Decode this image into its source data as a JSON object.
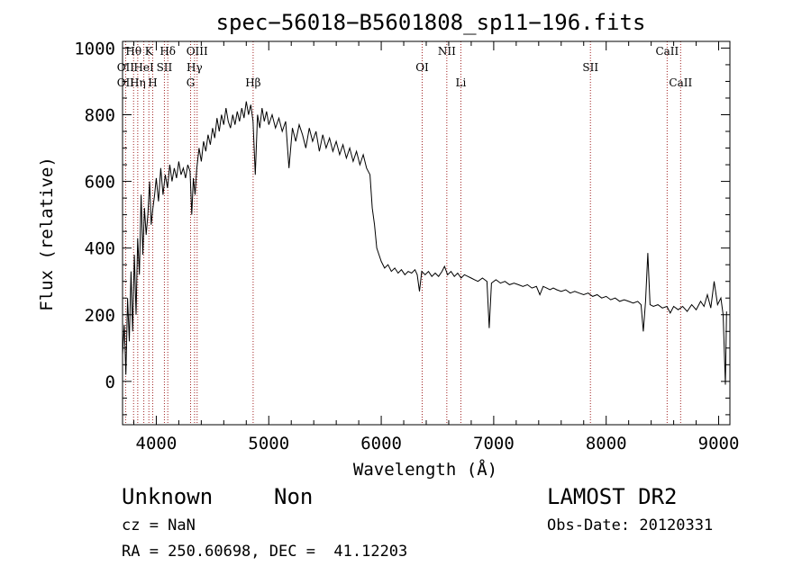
{
  "chart_data": {
    "type": "line",
    "title": "spec−56018−B5601808_sp11−196.fits",
    "xlabel": "Wavelength (Å)",
    "ylabel": "Flux (relative)",
    "xlim": [
      3700,
      9100
    ],
    "ylim": [
      -130,
      1020
    ],
    "xticks": [
      4000,
      5000,
      6000,
      7000,
      8000,
      9000
    ],
    "yticks": [
      0,
      200,
      400,
      600,
      800,
      1000
    ],
    "grid": false,
    "series": [
      {
        "points": [
          [
            3700,
            80
          ],
          [
            3715,
            170
          ],
          [
            3730,
            20
          ],
          [
            3745,
            250
          ],
          [
            3760,
            120
          ],
          [
            3775,
            330
          ],
          [
            3790,
            150
          ],
          [
            3805,
            380
          ],
          [
            3820,
            200
          ],
          [
            3835,
            430
          ],
          [
            3850,
            320
          ],
          [
            3865,
            560
          ],
          [
            3880,
            380
          ],
          [
            3895,
            520
          ],
          [
            3910,
            440
          ],
          [
            3925,
            500
          ],
          [
            3940,
            600
          ],
          [
            3955,
            470
          ],
          [
            3970,
            520
          ],
          [
            3985,
            560
          ],
          [
            4000,
            610
          ],
          [
            4020,
            540
          ],
          [
            4040,
            640
          ],
          [
            4060,
            560
          ],
          [
            4080,
            620
          ],
          [
            4100,
            580
          ],
          [
            4120,
            650
          ],
          [
            4140,
            600
          ],
          [
            4160,
            640
          ],
          [
            4180,
            610
          ],
          [
            4200,
            660
          ],
          [
            4220,
            620
          ],
          [
            4240,
            640
          ],
          [
            4260,
            610
          ],
          [
            4280,
            650
          ],
          [
            4300,
            630
          ],
          [
            4315,
            500
          ],
          [
            4330,
            610
          ],
          [
            4345,
            560
          ],
          [
            4360,
            640
          ],
          [
            4380,
            700
          ],
          [
            4400,
            660
          ],
          [
            4420,
            720
          ],
          [
            4440,
            690
          ],
          [
            4460,
            740
          ],
          [
            4480,
            710
          ],
          [
            4500,
            760
          ],
          [
            4520,
            730
          ],
          [
            4540,
            790
          ],
          [
            4560,
            750
          ],
          [
            4580,
            800
          ],
          [
            4600,
            770
          ],
          [
            4620,
            820
          ],
          [
            4640,
            780
          ],
          [
            4660,
            760
          ],
          [
            4680,
            800
          ],
          [
            4700,
            770
          ],
          [
            4720,
            810
          ],
          [
            4740,
            780
          ],
          [
            4760,
            820
          ],
          [
            4780,
            790
          ],
          [
            4800,
            840
          ],
          [
            4820,
            800
          ],
          [
            4840,
            830
          ],
          [
            4860,
            780
          ],
          [
            4880,
            620
          ],
          [
            4900,
            800
          ],
          [
            4920,
            760
          ],
          [
            4940,
            820
          ],
          [
            4960,
            780
          ],
          [
            4980,
            810
          ],
          [
            5000,
            770
          ],
          [
            5030,
            800
          ],
          [
            5060,
            760
          ],
          [
            5090,
            790
          ],
          [
            5120,
            750
          ],
          [
            5150,
            780
          ],
          [
            5180,
            640
          ],
          [
            5210,
            760
          ],
          [
            5240,
            720
          ],
          [
            5270,
            770
          ],
          [
            5300,
            740
          ],
          [
            5330,
            700
          ],
          [
            5360,
            760
          ],
          [
            5390,
            720
          ],
          [
            5420,
            750
          ],
          [
            5450,
            690
          ],
          [
            5480,
            740
          ],
          [
            5510,
            700
          ],
          [
            5540,
            730
          ],
          [
            5570,
            690
          ],
          [
            5600,
            720
          ],
          [
            5630,
            680
          ],
          [
            5660,
            710
          ],
          [
            5690,
            670
          ],
          [
            5720,
            700
          ],
          [
            5750,
            660
          ],
          [
            5780,
            690
          ],
          [
            5810,
            650
          ],
          [
            5840,
            680
          ],
          [
            5870,
            640
          ],
          [
            5900,
            620
          ],
          [
            5920,
            520
          ],
          [
            5940,
            470
          ],
          [
            5960,
            400
          ],
          [
            5980,
            380
          ],
          [
            6000,
            360
          ],
          [
            6030,
            340
          ],
          [
            6060,
            350
          ],
          [
            6090,
            330
          ],
          [
            6120,
            340
          ],
          [
            6150,
            325
          ],
          [
            6180,
            335
          ],
          [
            6210,
            320
          ],
          [
            6240,
            330
          ],
          [
            6270,
            325
          ],
          [
            6300,
            335
          ],
          [
            6320,
            320
          ],
          [
            6340,
            270
          ],
          [
            6360,
            330
          ],
          [
            6390,
            320
          ],
          [
            6420,
            330
          ],
          [
            6450,
            315
          ],
          [
            6480,
            325
          ],
          [
            6510,
            315
          ],
          [
            6540,
            330
          ],
          [
            6563,
            345
          ],
          [
            6590,
            320
          ],
          [
            6620,
            330
          ],
          [
            6650,
            315
          ],
          [
            6680,
            325
          ],
          [
            6710,
            310
          ],
          [
            6740,
            320
          ],
          [
            6770,
            315
          ],
          [
            6800,
            310
          ],
          [
            6830,
            305
          ],
          [
            6860,
            300
          ],
          [
            6900,
            310
          ],
          [
            6940,
            300
          ],
          [
            6960,
            160
          ],
          [
            6980,
            295
          ],
          [
            7020,
            305
          ],
          [
            7060,
            295
          ],
          [
            7100,
            300
          ],
          [
            7140,
            290
          ],
          [
            7180,
            295
          ],
          [
            7220,
            290
          ],
          [
            7260,
            285
          ],
          [
            7300,
            290
          ],
          [
            7340,
            280
          ],
          [
            7380,
            285
          ],
          [
            7410,
            260
          ],
          [
            7440,
            285
          ],
          [
            7470,
            280
          ],
          [
            7500,
            275
          ],
          [
            7530,
            280
          ],
          [
            7560,
            275
          ],
          [
            7600,
            270
          ],
          [
            7640,
            275
          ],
          [
            7680,
            265
          ],
          [
            7720,
            270
          ],
          [
            7760,
            265
          ],
          [
            7800,
            260
          ],
          [
            7840,
            265
          ],
          [
            7880,
            255
          ],
          [
            7920,
            260
          ],
          [
            7960,
            250
          ],
          [
            8000,
            255
          ],
          [
            8040,
            245
          ],
          [
            8080,
            250
          ],
          [
            8120,
            240
          ],
          [
            8160,
            245
          ],
          [
            8200,
            240
          ],
          [
            8240,
            235
          ],
          [
            8280,
            240
          ],
          [
            8310,
            230
          ],
          [
            8330,
            150
          ],
          [
            8350,
            240
          ],
          [
            8370,
            385
          ],
          [
            8390,
            230
          ],
          [
            8420,
            225
          ],
          [
            8460,
            230
          ],
          [
            8500,
            220
          ],
          [
            8540,
            225
          ],
          [
            8570,
            205
          ],
          [
            8600,
            225
          ],
          [
            8640,
            215
          ],
          [
            8680,
            225
          ],
          [
            8720,
            210
          ],
          [
            8760,
            230
          ],
          [
            8800,
            215
          ],
          [
            8840,
            240
          ],
          [
            8870,
            225
          ],
          [
            8900,
            260
          ],
          [
            8930,
            220
          ],
          [
            8960,
            300
          ],
          [
            8990,
            230
          ],
          [
            9020,
            250
          ],
          [
            9040,
            200
          ],
          [
            9060,
            -10
          ],
          [
            9070,
            210
          ]
        ]
      }
    ],
    "annotations": [
      {
        "label": "Hθ",
        "x": 3798,
        "row": 0
      },
      {
        "label": "K",
        "x": 3934,
        "row": 0
      },
      {
        "label": "Hδ",
        "x": 4102,
        "row": 0
      },
      {
        "label": "OIII",
        "x": 4363,
        "row": 0
      },
      {
        "label": "NII",
        "x": 6583,
        "row": 0
      },
      {
        "label": "CaII",
        "x": 8542,
        "row": 0
      },
      {
        "label": "OII",
        "x": 3727,
        "row": 1
      },
      {
        "label": "HeI",
        "x": 3889,
        "row": 1
      },
      {
        "label": "SII",
        "x": 4072,
        "row": 1
      },
      {
        "label": "Hγ",
        "x": 4340,
        "row": 1
      },
      {
        "label": "OI",
        "x": 6364,
        "row": 1
      },
      {
        "label": "SII",
        "x": 7860,
        "row": 1
      },
      {
        "label": "OII",
        "x": 3727,
        "row": 2
      },
      {
        "label": "Hη",
        "x": 3835,
        "row": 2
      },
      {
        "label": "H",
        "x": 3968,
        "row": 2
      },
      {
        "label": "G",
        "x": 4305,
        "row": 2
      },
      {
        "label": "Hβ",
        "x": 4861,
        "row": 2
      },
      {
        "label": "Li",
        "x": 6708,
        "row": 2
      },
      {
        "label": "CaII",
        "x": 8662,
        "row": 2
      }
    ],
    "line_markers": [
      3727,
      3798,
      3835,
      3889,
      3934,
      3968,
      4072,
      4102,
      4305,
      4340,
      4363,
      4861,
      6364,
      6583,
      6708,
      7860,
      8542,
      8662
    ]
  },
  "info": {
    "object_class": "Unknown",
    "object_subclass": "Non",
    "redshift_text": "cz = NaN",
    "coords_text": "RA = 250.60698, DEC =  41.12203",
    "survey": "LAMOST DR2",
    "obs_date": "Obs-Date: 20120331"
  },
  "colors": {
    "spectrum": "#000000",
    "marker": "#a02020",
    "axis": "#000000"
  }
}
